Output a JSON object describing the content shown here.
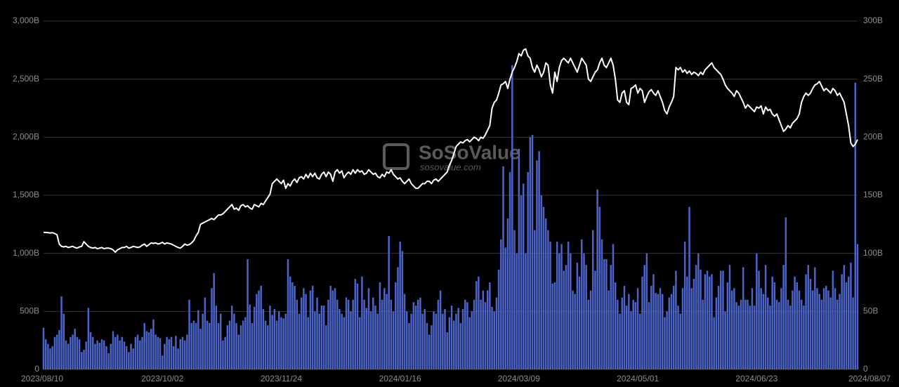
{
  "chart_data": {
    "type": "bar-line",
    "watermark": "SoSoValue",
    "watermark_sub": "sosovalue.com",
    "ylim": [
      0,
      3000
    ],
    "yticks": [
      {
        "value": 0,
        "label": "0"
      },
      {
        "value": 500,
        "label": "500B"
      },
      {
        "value": 1000,
        "label": "1,000B"
      },
      {
        "value": 1500,
        "label": "1,500B"
      },
      {
        "value": 2000,
        "label": "2,000B"
      },
      {
        "value": 2500,
        "label": "2,500B"
      },
      {
        "value": 3000,
        "label": "3,000B"
      }
    ],
    "y2lim": [
      0,
      300
    ],
    "y2ticks": [
      0,
      {
        "value": 50,
        "label": "50B"
      },
      {
        "value": 100,
        "label": "100B"
      },
      {
        "value": 150,
        "label": "150B"
      },
      {
        "value": 200,
        "label": "200B"
      },
      {
        "value": 250,
        "label": "250B"
      },
      {
        "value": 300,
        "label": "300B"
      }
    ],
    "grid": true,
    "categories": [
      "2023/08/10",
      null,
      null,
      null,
      null,
      null,
      null,
      null,
      null,
      null,
      null,
      null,
      null,
      null,
      null,
      null,
      null,
      null,
      null,
      null,
      null,
      null,
      null,
      null,
      null,
      null,
      null,
      null,
      null,
      null,
      null,
      null,
      null,
      null,
      null,
      null,
      null,
      null,
      null,
      null,
      null,
      null,
      null,
      null,
      null,
      null,
      null,
      null,
      null,
      null,
      null,
      null,
      null,
      "2023/10/02",
      null,
      null,
      null,
      null,
      null,
      null,
      null,
      null,
      null,
      null,
      null,
      null,
      null,
      null,
      null,
      null,
      null,
      null,
      null,
      null,
      null,
      null,
      null,
      null,
      null,
      null,
      null,
      null,
      null,
      null,
      null,
      null,
      null,
      null,
      null,
      null,
      null,
      null,
      null,
      null,
      null,
      null,
      null,
      null,
      null,
      null,
      null,
      null,
      null,
      null,
      null,
      null,
      "2023/11/24",
      null,
      null,
      null,
      null,
      null,
      null,
      null,
      null,
      null,
      null,
      null,
      null,
      null,
      null,
      null,
      null,
      null,
      null,
      null,
      null,
      null,
      null,
      null,
      null,
      null,
      null,
      null,
      null,
      null,
      null,
      null,
      null,
      null,
      null,
      null,
      null,
      null,
      null,
      null,
      null,
      null,
      null,
      null,
      null,
      null,
      null,
      null,
      null,
      null,
      null,
      null,
      null,
      "2024/01/16",
      null,
      null,
      null,
      null,
      null,
      null,
      null,
      null,
      null,
      null,
      null,
      null,
      null,
      null,
      null,
      null,
      null,
      null,
      null,
      null,
      null,
      null,
      null,
      null,
      null,
      null,
      null,
      null,
      null,
      null,
      null,
      null,
      null,
      null,
      null,
      null,
      null,
      null,
      null,
      null,
      null,
      null,
      null,
      null,
      null,
      null,
      null,
      null,
      null,
      null,
      null,
      null,
      "2024/03/09",
      null,
      null,
      null,
      null,
      null,
      null,
      null,
      null,
      null,
      null,
      null,
      null,
      null,
      null,
      null,
      null,
      null,
      null,
      null,
      null,
      null,
      null,
      null,
      null,
      null,
      null,
      null,
      null,
      null,
      null,
      null,
      null,
      null,
      null,
      null,
      null,
      null,
      null,
      null,
      null,
      null,
      null,
      null,
      null,
      null,
      null,
      null,
      null,
      null,
      null,
      null,
      null,
      "2024/05/01",
      null,
      null,
      null,
      null,
      null,
      null,
      null,
      null,
      null,
      null,
      null,
      null,
      null,
      null,
      null,
      null,
      null,
      null,
      null,
      null,
      null,
      null,
      null,
      null,
      null,
      null,
      null,
      null,
      null,
      null,
      null,
      null,
      null,
      null,
      null,
      null,
      null,
      null,
      null,
      null,
      null,
      null,
      null,
      null,
      null,
      null,
      null,
      null,
      null,
      null,
      null,
      null,
      "2024/06/23",
      null,
      null,
      null,
      null,
      null,
      null,
      null,
      null,
      null,
      null,
      null,
      null,
      null,
      null,
      null,
      null,
      null,
      null,
      null,
      null,
      null,
      null,
      null,
      null,
      null,
      null,
      null,
      null,
      null,
      null,
      null,
      null,
      null,
      null,
      null,
      null,
      null,
      null,
      null,
      null,
      null,
      null,
      null,
      null,
      "2024/08/07"
    ],
    "series": [
      {
        "type": "bar",
        "axis": "y2",
        "color": "#4c63c9",
        "values": [
          36,
          26,
          22,
          18,
          20,
          28,
          30,
          34,
          63,
          48,
          25,
          22,
          28,
          30,
          35,
          28,
          26,
          15,
          17,
          24,
          53,
          32,
          28,
          22,
          25,
          23,
          26,
          25,
          20,
          14,
          22,
          33,
          28,
          30,
          25,
          28,
          24,
          20,
          15,
          22,
          18,
          28,
          30,
          25,
          28,
          40,
          33,
          32,
          35,
          43,
          30,
          28,
          27,
          12,
          22,
          28,
          26,
          28,
          20,
          29,
          18,
          26,
          28,
          25,
          30,
          60,
          40,
          42,
          40,
          51,
          35,
          48,
          62,
          42,
          40,
          70,
          83,
          55,
          40,
          48,
          25,
          28,
          38,
          42,
          55,
          48,
          40,
          30,
          38,
          42,
          45,
          95,
          56,
          40,
          54,
          65,
          68,
          72,
          52,
          42,
          38,
          55,
          47,
          52,
          42,
          50,
          45,
          44,
          48,
          95,
          80,
          75,
          72,
          60,
          48,
          62,
          70,
          65,
          45,
          68,
          72,
          50,
          62,
          48,
          55,
          55,
          38,
          60,
          72,
          68,
          70,
          60,
          52,
          48,
          45,
          62,
          60,
          50,
          60,
          78,
          74,
          45,
          80,
          60,
          53,
          70,
          50,
          62,
          55,
          48,
          75,
          60,
          70,
          65,
          115,
          60,
          50,
          75,
          88,
          110,
          102,
          65,
          50,
          40,
          48,
          58,
          55,
          60,
          62,
          48,
          52,
          40,
          30,
          38,
          50,
          48,
          60,
          68,
          48,
          52,
          32,
          45,
          55,
          42,
          48,
          53,
          40,
          52,
          60,
          58,
          45,
          50,
          60,
          76,
          80,
          60,
          68,
          58,
          68,
          75,
          54,
          50,
          62,
          86,
          112,
          175,
          105,
          130,
          170,
          262,
          120,
          100,
          190,
          150,
          160,
          100,
          170,
          200,
          202,
          120,
          180,
          188,
          150,
          140,
          130,
          120,
          110,
          74,
          75,
          110,
          100,
          108,
          85,
          90,
          110,
          100,
          68,
          65,
          92,
          80,
          112,
          100,
          90,
          60,
          68,
          120,
          85,
          155,
          140,
          112,
          95,
          95,
          68,
          90,
          108,
          75,
          60,
          48,
          62,
          72,
          55,
          65,
          50,
          60,
          58,
          70,
          48,
          80,
          90,
          100,
          58,
          72,
          82,
          66,
          65,
          70,
          65,
          45,
          50,
          62,
          65,
          72,
          85,
          55,
          48,
          70,
          110,
          80,
          140,
          70,
          78,
          90,
          100,
          86,
          60,
          82,
          85,
          80,
          82,
          45,
          62,
          72,
          85,
          85,
          50,
          75,
          90,
          68,
          70,
          58,
          55,
          60,
          88,
          60,
          60,
          55,
          70,
          55,
          100,
          85,
          70,
          65,
          90,
          62,
          55,
          80,
          75,
          60,
          58,
          70,
          90,
          131,
          60,
          55,
          68,
          80,
          75,
          68,
          60,
          55,
          82,
          90,
          78,
          68,
          88,
          70,
          65,
          60,
          70,
          72,
          68,
          62,
          85,
          70,
          60,
          65,
          82,
          90,
          75,
          80,
          92,
          62,
          247,
          108
        ]
      },
      {
        "type": "line",
        "axis": "y",
        "color": "#ffffff",
        "values": [
          1180,
          1180,
          1178,
          1175,
          1178,
          1170,
          1160,
          1080,
          1060,
          1055,
          1060,
          1050,
          1055,
          1060,
          1050,
          1045,
          1055,
          1060,
          1100,
          1080,
          1060,
          1050,
          1045,
          1050,
          1040,
          1045,
          1050,
          1040,
          1045,
          1045,
          1040,
          1030,
          1010,
          1030,
          1040,
          1050,
          1050,
          1060,
          1045,
          1050,
          1060,
          1055,
          1050,
          1055,
          1070,
          1080,
          1060,
          1075,
          1090,
          1085,
          1090,
          1080,
          1085,
          1095,
          1080,
          1090,
          1085,
          1080,
          1070,
          1060,
          1050,
          1045,
          1060,
          1080,
          1070,
          1075,
          1090,
          1110,
          1150,
          1180,
          1250,
          1260,
          1270,
          1280,
          1290,
          1300,
          1290,
          1310,
          1330,
          1330,
          1340,
          1360,
          1380,
          1400,
          1420,
          1380,
          1390,
          1370,
          1410,
          1420,
          1400,
          1410,
          1390,
          1380,
          1420,
          1410,
          1400,
          1430,
          1420,
          1450,
          1480,
          1510,
          1600,
          1620,
          1640,
          1620,
          1600,
          1630,
          1560,
          1600,
          1580,
          1620,
          1640,
          1610,
          1650,
          1660,
          1640,
          1680,
          1650,
          1690,
          1660,
          1690,
          1650,
          1640,
          1680,
          1700,
          1660,
          1700,
          1680,
          1620,
          1700,
          1720,
          1690,
          1710,
          1650,
          1680,
          1700,
          1680,
          1720,
          1690,
          1720,
          1700,
          1710,
          1680,
          1690,
          1720,
          1700,
          1680,
          1690,
          1660,
          1650,
          1680,
          1660,
          1700,
          1690,
          1720,
          1680,
          1660,
          1640,
          1650,
          1620,
          1600,
          1620,
          1640,
          1600,
          1580,
          1560,
          1560,
          1580,
          1600,
          1600,
          1620,
          1620,
          1600,
          1630,
          1640,
          1620,
          1640,
          1660,
          1680,
          1700,
          1760,
          1800,
          1860,
          1920,
          1940,
          1960,
          1950,
          1970,
          1980,
          1960,
          1980,
          2000,
          1990,
          1970,
          2000,
          1990,
          2020,
          2060,
          2100,
          2250,
          2300,
          2320,
          2380,
          2450,
          2460,
          2480,
          2420,
          2500,
          2560,
          2600,
          2650,
          2720,
          2700,
          2750,
          2760,
          2700,
          2680,
          2600,
          2560,
          2620,
          2580,
          2520,
          2560,
          2640,
          2620,
          2450,
          2380,
          2560,
          2480,
          2600,
          2660,
          2680,
          2660,
          2640,
          2680,
          2640,
          2600,
          2560,
          2620,
          2680,
          2650,
          2620,
          2500,
          2480,
          2520,
          2560,
          2580,
          2640,
          2680,
          2620,
          2600,
          2640,
          2680,
          2620,
          2500,
          2320,
          2300,
          2380,
          2400,
          2300,
          2280,
          2420,
          2430,
          2450,
          2380,
          2420,
          2400,
          2300,
          2350,
          2390,
          2410,
          2380,
          2360,
          2400,
          2350,
          2300,
          2230,
          2200,
          2260,
          2300,
          2350,
          2600,
          2580,
          2600,
          2560,
          2580,
          2550,
          2570,
          2540,
          2560,
          2550,
          2530,
          2560,
          2540,
          2580,
          2600,
          2620,
          2640,
          2600,
          2580,
          2560,
          2540,
          2500,
          2450,
          2420,
          2400,
          2380,
          2350,
          2400,
          2380,
          2340,
          2300,
          2250,
          2280,
          2260,
          2240,
          2220,
          2260,
          2250,
          2270,
          2200,
          2260,
          2230,
          2240,
          2200,
          2180,
          2200,
          2150,
          2100,
          2050,
          2070,
          2100,
          2080,
          2120,
          2140,
          2160,
          2200,
          2300,
          2350,
          2380,
          2360,
          2380,
          2420,
          2450,
          2460,
          2480,
          2440,
          2400,
          2420,
          2400,
          2380,
          2420,
          2400,
          2360,
          2380,
          2340,
          2300,
          2200,
          2100,
          1950,
          1920,
          1940,
          1980
        ]
      }
    ]
  }
}
